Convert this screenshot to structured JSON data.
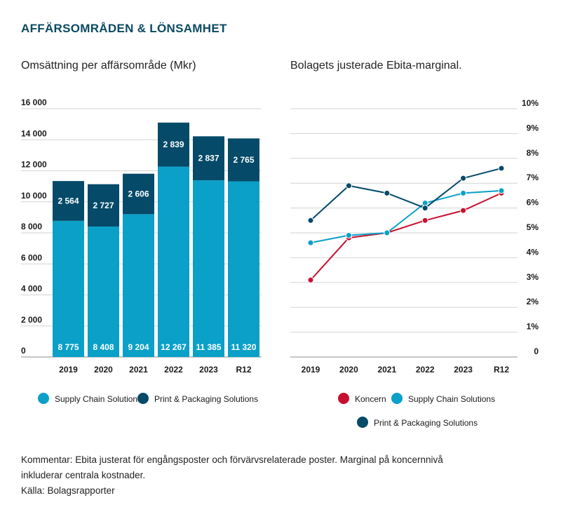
{
  "title": "AFFÄRSOMRÅDEN & LÖNSAMHET",
  "colors": {
    "scs": "#0aa0c8",
    "pps": "#054a68",
    "koncern": "#c8102e",
    "title": "#0b4a63"
  },
  "chart_data": [
    {
      "type": "bar",
      "stacked": true,
      "title": "Omsättning per affärsområde (Mkr)",
      "categories": [
        "2019",
        "2020",
        "2021",
        "2022",
        "2023",
        "R12"
      ],
      "series": [
        {
          "name": "Supply Chain Solutions",
          "values": [
            8775,
            8408,
            9204,
            12267,
            11385,
            11320
          ],
          "labels": [
            "8 775",
            "8 408",
            "9 204",
            "12 267",
            "11 385",
            "11 320"
          ]
        },
        {
          "name": "Print & Packaging Solutions",
          "values": [
            2564,
            2727,
            2606,
            2839,
            2837,
            2765
          ],
          "labels": [
            "2 564",
            "2 727",
            "2 606",
            "2 839",
            "2 837",
            "2 765"
          ]
        }
      ],
      "ylim": [
        0,
        16000
      ],
      "yticks": [
        0,
        2000,
        4000,
        6000,
        8000,
        10000,
        12000,
        14000,
        16000
      ],
      "ytick_labels": [
        "0",
        "2 000",
        "4 000",
        "6 000",
        "8 000",
        "10 000",
        "12 000",
        "14 000",
        "16 000"
      ],
      "grid": true,
      "legend": "bottom"
    },
    {
      "type": "line",
      "title": "Bolagets justerade Ebita-marginal.",
      "categories": [
        "2019",
        "2020",
        "2021",
        "2022",
        "2023",
        "R12"
      ],
      "series": [
        {
          "name": "Koncern",
          "values": [
            3.1,
            4.8,
            5.0,
            5.5,
            5.9,
            6.6
          ]
        },
        {
          "name": "Supply Chain Solutions",
          "values": [
            4.6,
            4.9,
            5.0,
            6.2,
            6.6,
            6.7
          ]
        },
        {
          "name": "Print & Packaging Solutions",
          "values": [
            5.5,
            6.9,
            6.6,
            6.0,
            7.2,
            7.6
          ]
        }
      ],
      "ylim": [
        0,
        10
      ],
      "yticks": [
        0,
        1,
        2,
        3,
        4,
        5,
        6,
        7,
        8,
        9,
        10
      ],
      "ytick_labels": [
        "0",
        "1%",
        "2%",
        "3%",
        "4%",
        "5%",
        "6%",
        "7%",
        "8%",
        "9%",
        "10%"
      ],
      "yaxis_position": "right",
      "grid": true,
      "legend": "bottom"
    }
  ],
  "footnote": {
    "line1": "Kommentar: Ebita justerat för engångsposter och förvärvsrelaterade poster. Marginal på koncernnivå",
    "line2": "inkluderar centrala kostnader.",
    "line3": "Källa: Bolagsrapporter"
  }
}
